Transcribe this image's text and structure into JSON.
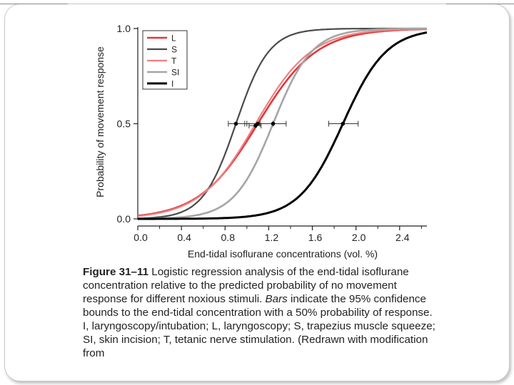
{
  "slide": {
    "accent_color": "#ffffff",
    "frame_color": "#c9c9c9"
  },
  "chart_data": {
    "type": "line",
    "ylabel": "Probability of movement response",
    "xlabel": "End-tidal isoflurane concentrations (vol. %)",
    "xlim": [
      0,
      2.65
    ],
    "ylim": [
      0,
      1.0
    ],
    "x_ticks": [
      "0.0",
      "0.4",
      "0.8",
      "1.2",
      "1.6",
      "2.0",
      "2.4"
    ],
    "x_tick_values": [
      0,
      0.4,
      0.8,
      1.2,
      1.6,
      2.0,
      2.4
    ],
    "y_ticks": [
      "0.0",
      "0.5",
      "1.0"
    ],
    "y_tick_values": [
      0,
      0.5,
      1.0
    ],
    "legend_position": "top-left",
    "series": [
      {
        "name": "L",
        "color": "#e0383b",
        "width": 2.6,
        "ec50": 1.1,
        "slope": 3.7,
        "ci": [
          0.98,
          1.24
        ],
        "marker_y": 0.5
      },
      {
        "name": "S",
        "color": "#4a4a4a",
        "width": 2.2,
        "ec50": 0.9,
        "slope": 6.6,
        "ci": [
          0.83,
          1.0
        ],
        "marker_y": 0.5
      },
      {
        "name": "T",
        "color": "#f08080",
        "width": 2.2,
        "ec50": 1.08,
        "slope": 3.9,
        "ci": [
          1.02,
          1.13
        ],
        "marker_y": 0.49
      },
      {
        "name": "SI",
        "color": "#a5a5a5",
        "width": 2.6,
        "ec50": 1.24,
        "slope": 5.6,
        "ci": [
          1.12,
          1.36
        ],
        "marker_y": 0.5
      },
      {
        "name": "I",
        "color": "#000000",
        "width": 3.0,
        "ec50": 1.88,
        "slope": 5.0,
        "ci": [
          1.75,
          2.02
        ],
        "marker_y": 0.5
      }
    ]
  },
  "caption": {
    "label": "Figure 31–11",
    "text_1": " Logistic regression analysis of the end-tidal isoflurane concentration relative to the predicted probability of no movement response for different noxious stimuli. ",
    "bars_word": "Bars",
    "text_2": " indicate the 95% confidence bounds to the end-tidal concentration with a 50% probability of response. I, laryngoscopy/intubation; L, laryngoscopy; S, trapezius muscle squeeze; SI, skin incision; T, tetanic nerve stimulation. (Redrawn with modification from"
  }
}
